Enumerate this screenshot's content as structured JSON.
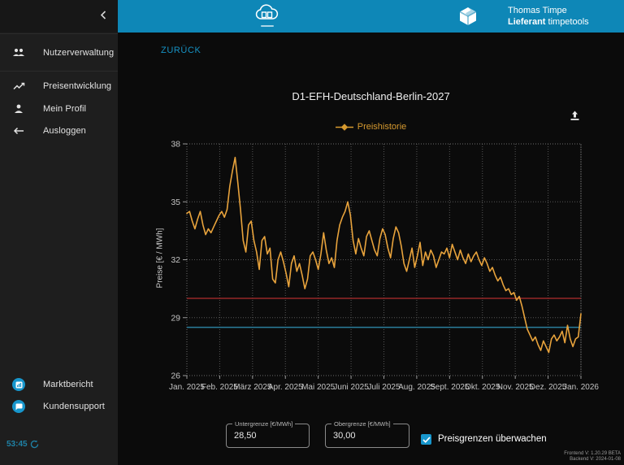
{
  "header": {
    "user_name": "Thomas Timpe",
    "user_role_bold": "Lieferant",
    "user_role_rest": " timpetools"
  },
  "sidebar": {
    "collapse_icon": "chevron-left",
    "items": [
      {
        "label": "Nutzerverwaltung",
        "icon": "group-icon"
      },
      {
        "label": "Preisentwicklung",
        "icon": "trending-line-icon"
      },
      {
        "label": "Mein Profil",
        "icon": "person-icon"
      },
      {
        "label": "Ausloggen",
        "icon": "arrow-left-icon"
      }
    ],
    "bottom_items": [
      {
        "label": "Marktbericht",
        "icon": "report-icon"
      },
      {
        "label": "Kundensupport",
        "icon": "chat-icon"
      }
    ],
    "timer": "53:45"
  },
  "main": {
    "back_label": "ZURÜCK"
  },
  "controls": {
    "lower_label": "Untergrenze [€/MWh]",
    "lower_value": "28,50",
    "upper_label": "Obergrenze [€/MWh]",
    "upper_value": "30,00",
    "checkbox_label": "Preisgrenzen überwachen",
    "checkbox_checked": true
  },
  "footer": {
    "frontend_version": "Frontend V: 1.20.29 BETA",
    "backend_version": "Backend V: 2024-01-08"
  },
  "colors": {
    "header_cyan": "#0e87b7",
    "accent_cyan": "#1796cc",
    "link_cyan": "#1692c4",
    "timer_teal": "#1f82a6",
    "series_orange": "#e8a33c",
    "upper_limit_red": "#962828",
    "lower_limit_blue": "#2b7e9d",
    "grid_gray": "#565656"
  },
  "chart_data": {
    "type": "line",
    "title": "D1-EFH-Deutschland-Berlin-2027",
    "legend_label": "Preishistorie",
    "legend_position": "top",
    "ylabel": "Preise [€ / MWh]",
    "xlabel": "",
    "ylim": [
      26,
      38
    ],
    "yticks": [
      26,
      29,
      32,
      35,
      38
    ],
    "x_tick_labels": [
      "Jan. 2025",
      "Feb. 2025",
      "März 2025",
      "Apr. 2025",
      "Mai 2025",
      "Juni 2025",
      "Juli 2025",
      "Aug. 2025",
      "Sept. 2025",
      "Okt. 2025",
      "Nov. 2025",
      "Dez. 2025",
      "Jan. 2026"
    ],
    "grid": "dotted",
    "reference_lines": [
      {
        "name": "Obergrenze",
        "value": 30.0,
        "color": "#962828"
      },
      {
        "name": "Untergrenze",
        "value": 28.5,
        "color": "#2b7e9d"
      }
    ],
    "series": [
      {
        "name": "Preishistorie",
        "color": "#e8a33c",
        "values": [
          34.4,
          34.5,
          34.0,
          33.6,
          34.1,
          34.5,
          33.8,
          33.3,
          33.6,
          33.4,
          33.7,
          34.0,
          34.3,
          34.5,
          34.2,
          34.6,
          35.8,
          36.6,
          37.3,
          36.0,
          34.6,
          33.0,
          32.4,
          33.8,
          34.0,
          33.0,
          32.4,
          31.5,
          33.0,
          33.2,
          32.3,
          32.6,
          31.0,
          30.8,
          32.0,
          32.4,
          31.9,
          31.3,
          30.6,
          31.8,
          32.2,
          31.4,
          31.8,
          31.2,
          30.5,
          31.0,
          32.2,
          32.4,
          32.0,
          31.5,
          32.3,
          33.4,
          32.5,
          31.8,
          32.1,
          31.6,
          33.0,
          33.8,
          34.2,
          34.5,
          35.0,
          34.3,
          33.0,
          32.3,
          33.1,
          32.6,
          32.2,
          33.2,
          33.5,
          33.0,
          32.5,
          32.2,
          33.1,
          33.6,
          33.3,
          32.6,
          32.1,
          33.1,
          33.7,
          33.4,
          32.7,
          31.8,
          31.4,
          32.0,
          32.6,
          31.6,
          32.2,
          32.9,
          31.7,
          32.4,
          32.0,
          32.5,
          32.2,
          31.6,
          32.0,
          32.4,
          32.3,
          32.6,
          32.1,
          32.8,
          32.4,
          32.0,
          32.5,
          32.1,
          31.8,
          32.3,
          31.9,
          32.2,
          32.4,
          32.0,
          31.7,
          32.1,
          31.8,
          31.4,
          31.6,
          31.2,
          30.9,
          31.1,
          30.7,
          30.4,
          30.5,
          30.2,
          30.3,
          29.9,
          30.1,
          29.6,
          29.0,
          28.4,
          28.1,
          27.8,
          28.0,
          27.6,
          27.3,
          27.8,
          27.5,
          27.2,
          27.9,
          28.1,
          27.8,
          28.0,
          28.3,
          27.7,
          28.6,
          27.9,
          27.5,
          27.9,
          28.0,
          29.2
        ]
      }
    ]
  }
}
